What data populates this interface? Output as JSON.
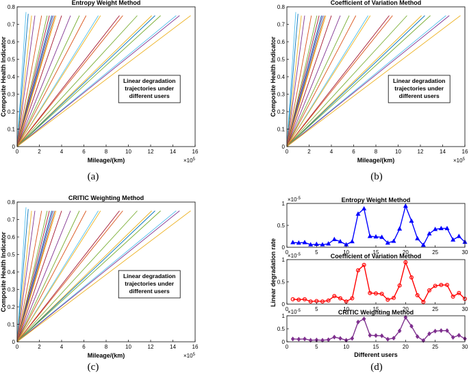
{
  "figure": {
    "captions": [
      "(a)",
      "(b)",
      "(c)",
      "(d)"
    ]
  },
  "chart_data": [
    {
      "id": "a",
      "type": "line",
      "title": "Entropy Weight Method",
      "xlabel": "Mileage/(km)",
      "ylabel": "Composite Health Indicator",
      "x_multiplier": "×10^5",
      "xlim": [
        0,
        16
      ],
      "ylim": [
        0,
        0.8
      ],
      "xticks": [
        "0",
        "2",
        "4",
        "6",
        "8",
        "10",
        "12",
        "14",
        "16"
      ],
      "yticks": [
        "0",
        "0.1",
        "0.2",
        "0.3",
        "0.4",
        "0.5",
        "0.6",
        "0.7",
        "0.8"
      ],
      "annotation": [
        "Linear degradation",
        "trajectories under",
        "different users"
      ],
      "series_end_x": [
        0.8,
        1.0,
        1.3,
        1.6,
        2.2,
        2.7,
        2.9,
        3.1,
        3.2,
        3.3,
        3.4,
        3.5,
        4.0,
        4.8,
        5.6,
        6.2,
        7.3,
        7.5,
        9.2,
        9.5,
        10.8,
        12.1,
        12.4,
        12.9,
        14.3,
        14.6,
        15.6
      ],
      "series_end_y": [
        0.77,
        0.76,
        0.75,
        0.75,
        0.75,
        0.75,
        0.75,
        0.75,
        0.75,
        0.75,
        0.75,
        0.75,
        0.75,
        0.75,
        0.75,
        0.75,
        0.75,
        0.75,
        0.75,
        0.75,
        0.75,
        0.75,
        0.75,
        0.75,
        0.75,
        0.75,
        0.75
      ],
      "series_colors": [
        "#4DBEEE",
        "#0072BD",
        "#EDB120",
        "#7E2F8E",
        "#D95319",
        "#77AC30",
        "#A2142F",
        "#0072BD",
        "#7E2F8E",
        "#4DBEEE",
        "#D95319",
        "#EDB120",
        "#A2142F",
        "#7E2F8E",
        "#77AC30",
        "#D95319",
        "#4DBEEE",
        "#EDB120",
        "#A2142F",
        "#D95319",
        "#77AC30",
        "#EDB120",
        "#0072BD",
        "#77AC30",
        "#4DBEEE",
        "#7E2F8E",
        "#EDB120"
      ]
    },
    {
      "id": "b",
      "type": "line",
      "title": "Coefficient of Variation Method",
      "xlabel": "Mileage/(km)",
      "ylabel": "Composite Health Indicator",
      "x_multiplier": "×10^5",
      "xlim": [
        0,
        16
      ],
      "ylim": [
        0,
        0.8
      ],
      "xticks": [
        "0",
        "2",
        "4",
        "6",
        "8",
        "10",
        "12",
        "14",
        "16"
      ],
      "yticks": [
        "0",
        "0.1",
        "0.2",
        "0.3",
        "0.4",
        "0.5",
        "0.6",
        "0.7",
        "0.8"
      ],
      "annotation": [
        "Linear degradation",
        "trajectories under",
        "different users"
      ],
      "series_end_x": [
        0.8,
        1.0,
        1.3,
        1.6,
        2.2,
        2.7,
        2.9,
        3.1,
        3.2,
        3.3,
        3.4,
        3.5,
        4.0,
        4.8,
        5.6,
        6.2,
        7.3,
        7.5,
        9.2,
        9.5,
        10.8,
        12.1,
        12.4,
        12.9,
        14.3,
        14.6,
        15.6
      ],
      "series_end_y": [
        0.77,
        0.76,
        0.75,
        0.75,
        0.75,
        0.75,
        0.75,
        0.75,
        0.75,
        0.75,
        0.75,
        0.75,
        0.75,
        0.75,
        0.75,
        0.75,
        0.75,
        0.75,
        0.75,
        0.75,
        0.75,
        0.75,
        0.75,
        0.75,
        0.75,
        0.75,
        0.75
      ],
      "series_colors": [
        "#4DBEEE",
        "#0072BD",
        "#EDB120",
        "#7E2F8E",
        "#D95319",
        "#77AC30",
        "#A2142F",
        "#0072BD",
        "#7E2F8E",
        "#4DBEEE",
        "#D95319",
        "#EDB120",
        "#A2142F",
        "#7E2F8E",
        "#77AC30",
        "#D95319",
        "#4DBEEE",
        "#EDB120",
        "#A2142F",
        "#D95319",
        "#77AC30",
        "#EDB120",
        "#0072BD",
        "#77AC30",
        "#4DBEEE",
        "#7E2F8E",
        "#EDB120"
      ]
    },
    {
      "id": "c",
      "type": "line",
      "title": "CRITIC Weighting Method",
      "xlabel": "Mileage/(km)",
      "ylabel": "Composite Health Indicator",
      "x_multiplier": "×10^5",
      "xlim": [
        0,
        16
      ],
      "ylim": [
        0,
        0.8
      ],
      "xticks": [
        "0",
        "2",
        "4",
        "6",
        "8",
        "10",
        "12",
        "14",
        "16"
      ],
      "yticks": [
        "0",
        "0.1",
        "0.2",
        "0.3",
        "0.4",
        "0.5",
        "0.6",
        "0.7",
        "0.8"
      ],
      "annotation": [
        "Linear degradation",
        "trajectories under",
        "different users"
      ],
      "series_end_x": [
        0.8,
        1.0,
        1.3,
        1.6,
        2.2,
        2.7,
        2.9,
        3.1,
        3.2,
        3.3,
        3.4,
        3.5,
        4.0,
        4.8,
        5.6,
        6.2,
        7.3,
        7.5,
        9.2,
        9.5,
        10.8,
        12.1,
        12.4,
        12.9,
        14.3,
        14.6,
        15.6
      ],
      "series_end_y": [
        0.77,
        0.76,
        0.75,
        0.75,
        0.75,
        0.75,
        0.75,
        0.75,
        0.75,
        0.75,
        0.75,
        0.75,
        0.75,
        0.75,
        0.75,
        0.75,
        0.75,
        0.75,
        0.75,
        0.75,
        0.75,
        0.75,
        0.75,
        0.75,
        0.75,
        0.75,
        0.75
      ],
      "series_colors": [
        "#4DBEEE",
        "#0072BD",
        "#EDB120",
        "#7E2F8E",
        "#D95319",
        "#77AC30",
        "#A2142F",
        "#0072BD",
        "#7E2F8E",
        "#4DBEEE",
        "#D95319",
        "#EDB120",
        "#A2142F",
        "#7E2F8E",
        "#77AC30",
        "#D95319",
        "#4DBEEE",
        "#EDB120",
        "#A2142F",
        "#D95319",
        "#77AC30",
        "#EDB120",
        "#0072BD",
        "#77AC30",
        "#4DBEEE",
        "#7E2F8E",
        "#EDB120"
      ]
    },
    {
      "id": "d",
      "type": "line",
      "panels": [
        {
          "title": "Entropy Weight Method",
          "color": "#0000FF",
          "marker": "triangle",
          "ylim": [
            0,
            1
          ],
          "y_multiplier": "×10^-5",
          "yticks": [
            "0",
            "0.5",
            "1"
          ],
          "x": [
            1,
            2,
            3,
            4,
            5,
            6,
            7,
            8,
            9,
            10,
            11,
            12,
            13,
            14,
            15,
            16,
            17,
            18,
            19,
            20,
            21,
            22,
            23,
            24,
            25,
            26,
            27,
            28,
            29,
            30
          ],
          "values": [
            0.11,
            0.1,
            0.11,
            0.06,
            0.07,
            0.06,
            0.08,
            0.18,
            0.13,
            0.06,
            0.13,
            0.76,
            0.88,
            0.25,
            0.24,
            0.23,
            0.1,
            0.14,
            0.42,
            0.94,
            0.6,
            0.2,
            0.05,
            0.31,
            0.41,
            0.43,
            0.43,
            0.17,
            0.25,
            0.12
          ]
        },
        {
          "title": "Coefficient of Variation Method",
          "color": "#FF0000",
          "marker": "circle",
          "ylim": [
            0,
            1
          ],
          "y_multiplier": "×10^-5",
          "yticks": [
            "0",
            "0.5",
            "1"
          ],
          "x": [
            1,
            2,
            3,
            4,
            5,
            6,
            7,
            8,
            9,
            10,
            11,
            12,
            13,
            14,
            15,
            16,
            17,
            18,
            19,
            20,
            21,
            22,
            23,
            24,
            25,
            26,
            27,
            28,
            29,
            30
          ],
          "values": [
            0.11,
            0.1,
            0.11,
            0.06,
            0.07,
            0.06,
            0.08,
            0.18,
            0.13,
            0.06,
            0.13,
            0.76,
            0.88,
            0.25,
            0.24,
            0.23,
            0.1,
            0.14,
            0.42,
            0.94,
            0.6,
            0.2,
            0.05,
            0.31,
            0.41,
            0.43,
            0.43,
            0.17,
            0.25,
            0.12
          ]
        },
        {
          "title": "CRITIC Weighting Method",
          "color": "#7E2F8E",
          "marker": "diamond",
          "ylim": [
            0,
            1
          ],
          "y_multiplier": "×10^-5",
          "yticks": [
            "0",
            "0.5",
            "1"
          ],
          "x": [
            1,
            2,
            3,
            4,
            5,
            6,
            7,
            8,
            9,
            10,
            11,
            12,
            13,
            14,
            15,
            16,
            17,
            18,
            19,
            20,
            21,
            22,
            23,
            24,
            25,
            26,
            27,
            28,
            29,
            30
          ],
          "values": [
            0.11,
            0.1,
            0.11,
            0.06,
            0.07,
            0.06,
            0.08,
            0.18,
            0.13,
            0.06,
            0.13,
            0.76,
            0.88,
            0.25,
            0.24,
            0.23,
            0.1,
            0.14,
            0.42,
            0.94,
            0.6,
            0.2,
            0.05,
            0.31,
            0.41,
            0.43,
            0.43,
            0.17,
            0.25,
            0.12
          ]
        }
      ],
      "xlim": [
        0,
        30
      ],
      "xticks": [
        "0",
        "5",
        "10",
        "15",
        "20",
        "25",
        "30"
      ],
      "xlabel": "Different users",
      "ylabel": "Linear degradation rate"
    }
  ]
}
